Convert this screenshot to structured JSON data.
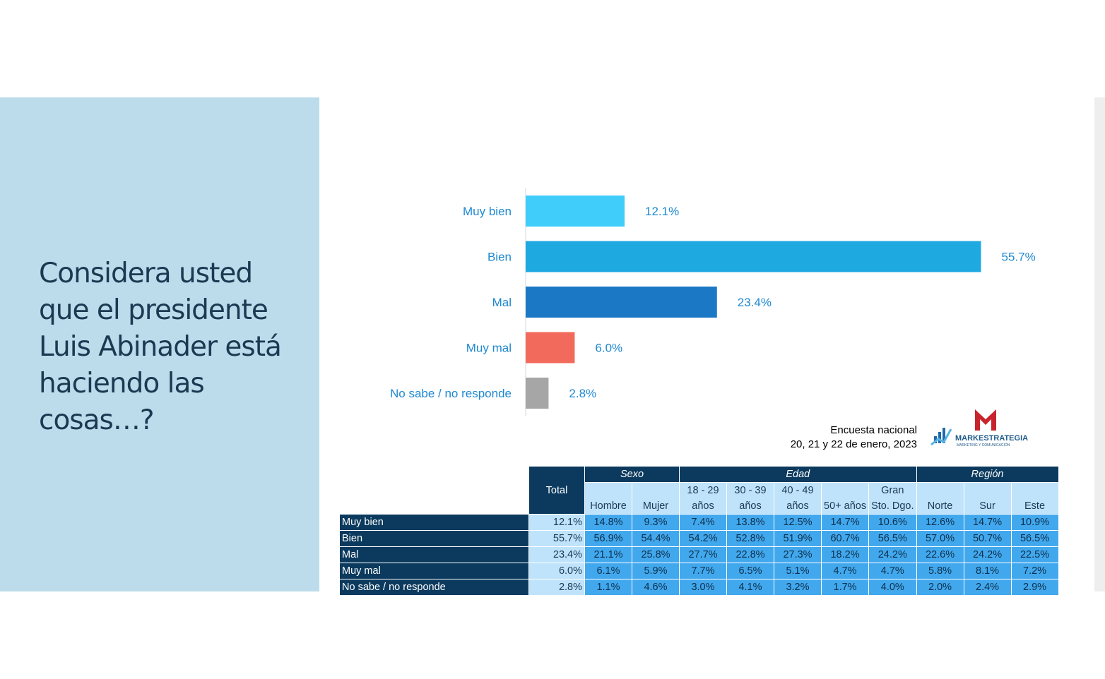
{
  "question": "Considera usted que el presidente Luis Abinader está haciendo las cosas…?",
  "chart_data": {
    "type": "bar",
    "orientation": "horizontal",
    "categories": [
      "Muy bien",
      "Bien",
      "Mal",
      "Muy mal",
      "No sabe / no responde"
    ],
    "values": [
      12.1,
      55.7,
      23.4,
      6.0,
      2.8
    ],
    "value_labels": [
      "12.1%",
      "55.7%",
      "23.4%",
      "6.0%",
      "2.8%"
    ],
    "colors": [
      "#40cdfa",
      "#1fa9e1",
      "#1b78c4",
      "#f16a5b",
      "#a6a6a6"
    ],
    "xlim": [
      0,
      56
    ]
  },
  "survey": {
    "line1": "Encuesta nacional",
    "line2": "20, 21 y 22 de enero, 2023"
  },
  "logo": {
    "name": "MARKESTRATEGIA",
    "tagline": "MARKETING Y COMUNICACIÓN"
  },
  "table": {
    "total_header": "Total",
    "groups": [
      {
        "label": "Sexo"
      },
      {
        "label": "Edad"
      },
      {
        "label": "Región"
      }
    ],
    "subheaders": [
      {
        "line1": "",
        "line2": "Hombre"
      },
      {
        "line1": "",
        "line2": "Mujer"
      },
      {
        "line1": "18 - 29",
        "line2": "años"
      },
      {
        "line1": "30 - 39",
        "line2": "años"
      },
      {
        "line1": "40 - 49",
        "line2": "años"
      },
      {
        "line1": "",
        "line2": "50+ años"
      },
      {
        "line1": "Gran",
        "line2": "Sto. Dgo."
      },
      {
        "line1": "",
        "line2": "Norte"
      },
      {
        "line1": "",
        "line2": "Sur"
      },
      {
        "line1": "",
        "line2": "Este"
      }
    ],
    "rows": [
      {
        "label": "Muy bien",
        "total": "12.1%",
        "cells": [
          "14.8%",
          "9.3%",
          "7.4%",
          "13.8%",
          "12.5%",
          "14.7%",
          "10.6%",
          "12.6%",
          "14.7%",
          "10.9%"
        ]
      },
      {
        "label": "Bien",
        "total": "55.7%",
        "cells": [
          "56.9%",
          "54.4%",
          "54.2%",
          "52.8%",
          "51.9%",
          "60.7%",
          "56.5%",
          "57.0%",
          "50.7%",
          "56.5%"
        ]
      },
      {
        "label": "Mal",
        "total": "23.4%",
        "cells": [
          "21.1%",
          "25.8%",
          "27.7%",
          "22.8%",
          "27.3%",
          "18.2%",
          "24.2%",
          "22.6%",
          "24.2%",
          "22.5%"
        ]
      },
      {
        "label": "Muy mal",
        "total": "6.0%",
        "cells": [
          "6.1%",
          "5.9%",
          "7.7%",
          "6.5%",
          "5.1%",
          "4.7%",
          "4.7%",
          "5.8%",
          "8.1%",
          "7.2%"
        ]
      },
      {
        "label": "No sabe / no responde",
        "total": "2.8%",
        "cells": [
          "1.1%",
          "4.6%",
          "3.0%",
          "4.1%",
          "3.2%",
          "1.7%",
          "4.0%",
          "2.0%",
          "2.4%",
          "2.9%"
        ]
      }
    ]
  }
}
